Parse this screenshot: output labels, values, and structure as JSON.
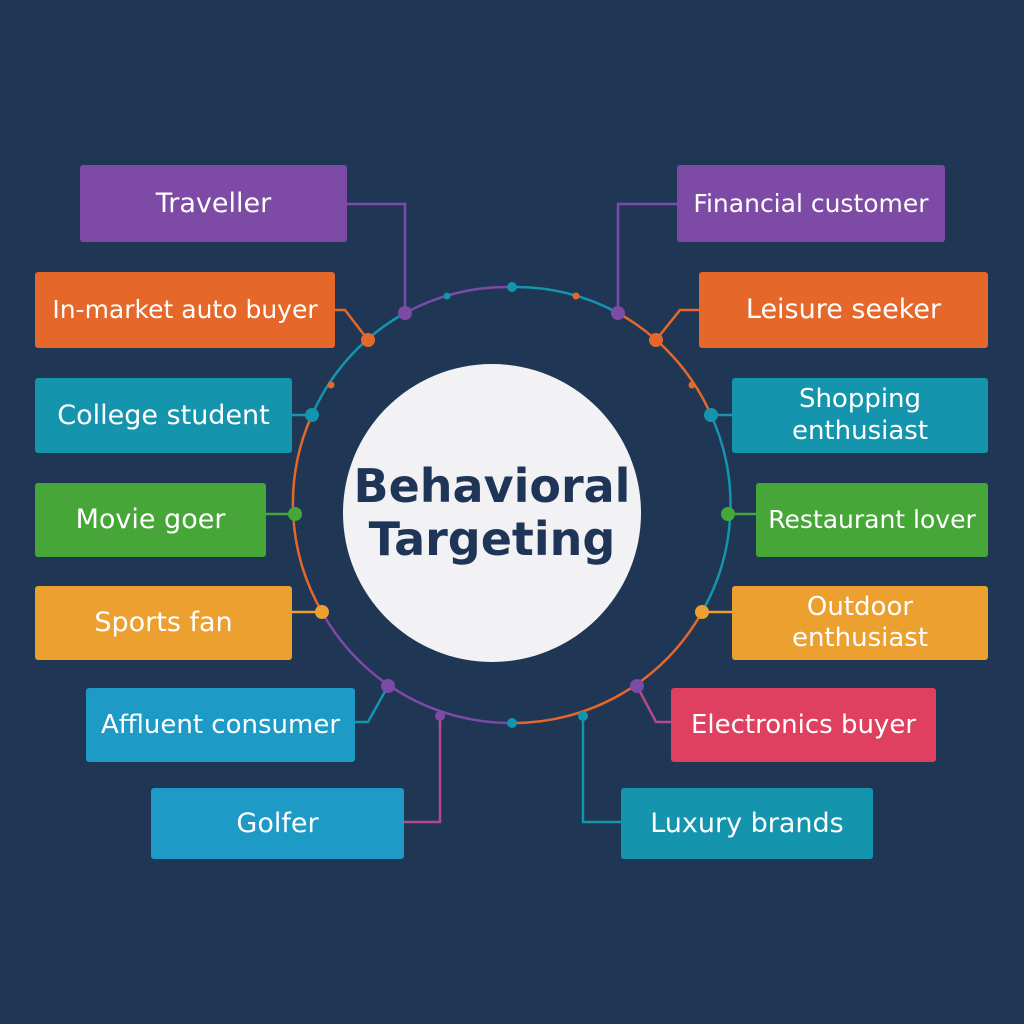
{
  "center": {
    "line1": "Behavioral",
    "line2": "Targeting"
  },
  "categories": {
    "left": {
      "traveller": "Traveller",
      "auto_buyer": "In-market auto buyer",
      "college_student": "College student",
      "movie_goer": "Movie goer",
      "sports_fan": "Sports fan",
      "affluent_consumer": "Affluent consumer",
      "golfer": "Golfer"
    },
    "right": {
      "financial_customer": "Financial customer",
      "leisure_seeker": "Leisure seeker",
      "shopping_line1": "Shopping",
      "shopping_line2": "enthusiast",
      "restaurant_lover": "Restaurant lover",
      "outdoor_line1": "Outdoor",
      "outdoor_line2": "enthusiast",
      "electronics_buyer": "Electronics buyer",
      "luxury_brands": "Luxury brands"
    }
  },
  "colors": {
    "background": "#1f3655",
    "purple": "#7d4aa5",
    "orange": "#e5682a",
    "teal": "#1595ad",
    "green": "#47a638",
    "amber": "#eba02f",
    "blue": "#1d9bc6",
    "pink": "#e0405f"
  }
}
